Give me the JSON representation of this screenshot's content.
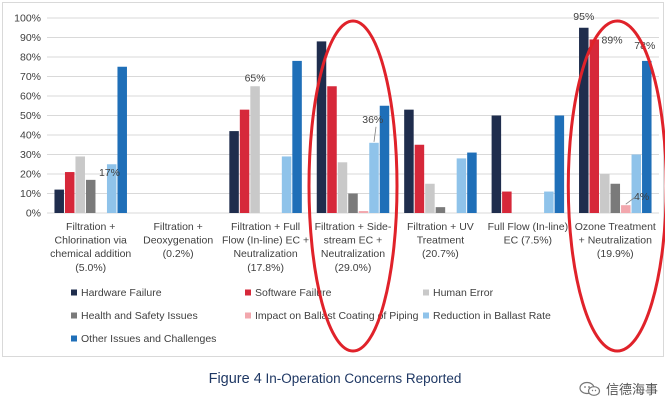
{
  "chart_data": {
    "type": "bar",
    "title": "",
    "xlabel": "",
    "ylabel": "",
    "ylim": [
      0,
      100
    ],
    "y_ticks": [
      "0%",
      "10%",
      "20%",
      "30%",
      "40%",
      "50%",
      "60%",
      "70%",
      "80%",
      "90%",
      "100%"
    ],
    "grid": true,
    "legend_position": "bottom",
    "categories": [
      [
        "Filtration +",
        "Chlorination via",
        "chemical addition",
        "(5.0%)"
      ],
      [
        "Filtration +",
        "Deoxygenation",
        "(0.2%)"
      ],
      [
        "Filtration + Full",
        "Flow (In-line) EC +",
        "Neutralization",
        "(17.8%)"
      ],
      [
        "Filtration + Side-",
        "stream EC +",
        "Neutralization",
        "(29.0%)"
      ],
      [
        "Filtration + UV",
        "Treatment",
        "(20.7%)"
      ],
      [
        "Full Flow (In-line)",
        "EC (7.5%)"
      ],
      [
        "Ozone Treatment",
        "+ Neutralization",
        "(19.9%)"
      ]
    ],
    "series": [
      {
        "name": "Hardware Failure",
        "color": "#1f2d4d",
        "values": [
          12,
          0,
          42,
          88,
          53,
          50,
          95
        ]
      },
      {
        "name": "Software Failure",
        "color": "#d6283a",
        "values": [
          21,
          0,
          53,
          65,
          35,
          11,
          89
        ]
      },
      {
        "name": "Human Error",
        "color": "#c9c9c9",
        "values": [
          29,
          0,
          65,
          26,
          15,
          0,
          20
        ]
      },
      {
        "name": "Health and Safety Issues",
        "color": "#7a7a7a",
        "values": [
          17,
          0,
          0,
          10,
          3,
          0,
          15
        ]
      },
      {
        "name": "Impact on Ballast Coating of Piping",
        "color": "#f2a7ad",
        "values": [
          0,
          0,
          0,
          1,
          0,
          0,
          4
        ]
      },
      {
        "name": "Reduction in Ballast Rate",
        "color": "#8fc3ea",
        "values": [
          25,
          0,
          29,
          36,
          28,
          11,
          30
        ]
      },
      {
        "name": "Other Issues and Challenges",
        "color": "#1f6fb8",
        "values": [
          75,
          0,
          78,
          55,
          31,
          50,
          78
        ]
      }
    ],
    "data_labels": [
      {
        "category": 0,
        "series": 3,
        "text": "17%"
      },
      {
        "category": 2,
        "series": 2,
        "text": "65%"
      },
      {
        "category": 3,
        "series": 5,
        "text": "36%"
      },
      {
        "category": 6,
        "series": 0,
        "text": "95%"
      },
      {
        "category": 6,
        "series": 1,
        "text": "89%"
      },
      {
        "category": 6,
        "series": 4,
        "text": "4%"
      },
      {
        "category": 6,
        "series": 6,
        "text": "78%"
      }
    ],
    "highlight_ellipses": [
      {
        "category": 3,
        "color": "#e0222a"
      },
      {
        "category": 6,
        "color": "#e0222a"
      }
    ]
  },
  "caption": {
    "figure": "Figure 4",
    "text": " In-Operation Concerns Reported"
  },
  "watermark": {
    "icon": "wechat-icon",
    "text": "信德海事"
  }
}
